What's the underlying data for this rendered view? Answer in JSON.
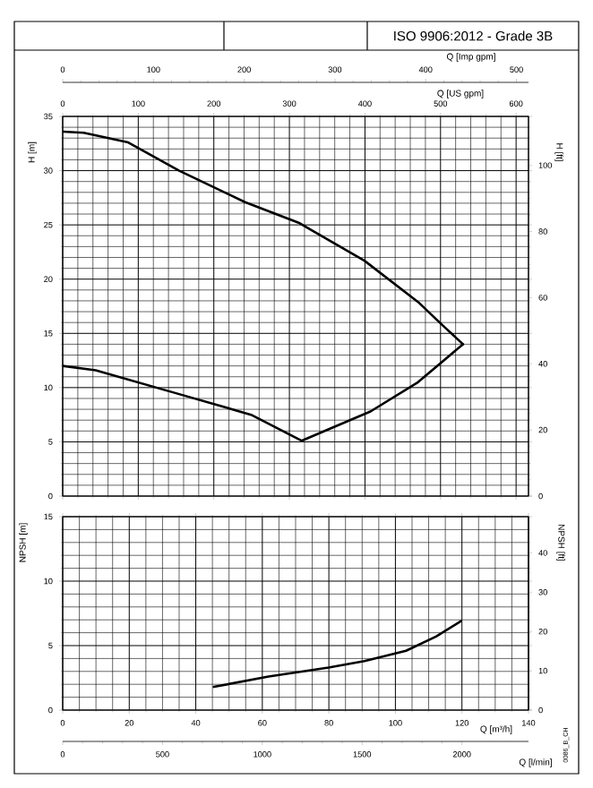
{
  "chart_data": [
    {
      "type": "line",
      "title": "ISO 9906:2012 - Grade 3B",
      "ylabel": "H [m]",
      "y2label": "H [ft]",
      "xlabel": "Q [US gpm]",
      "x2label": "Q [Imp gpm]",
      "xlim": [
        0,
        616.4
      ],
      "xticks": [
        0,
        100,
        200,
        300,
        400,
        500,
        600
      ],
      "ylim": [
        0,
        35
      ],
      "yticks": [
        0,
        5,
        10,
        15,
        20,
        25,
        30,
        35
      ],
      "y2lim": [
        0,
        114.8
      ],
      "y2ticks": [
        0,
        20,
        40,
        60,
        80,
        100
      ],
      "x2lim": [
        0,
        513.3
      ],
      "x2ticks": [
        0,
        100,
        200,
        300,
        400,
        500
      ],
      "grid": true,
      "series": [
        {
          "color": "#000000",
          "x": [
            0,
            27.7,
            86.7,
            154.1,
            241.3,
            312.2,
            399.3,
            470.2,
            501.9,
            529.7
          ],
          "values": [
            33.6,
            33.5,
            32.6,
            30.0,
            27.1,
            25.2,
            21.7,
            17.9,
            15.8,
            14.0
          ]
        },
        {
          "color": "#000000",
          "x": [
            0,
            43.6,
            154.1,
            249.2,
            316.1,
            407.3,
            470.2,
            529.7
          ],
          "values": [
            12.0,
            11.6,
            9.4,
            7.5,
            5.1,
            7.8,
            10.5,
            14.0
          ]
        }
      ]
    },
    {
      "type": "line",
      "xlabel": "Q [m³/h]",
      "x2label": "Q [l/min]",
      "ylabel": "NPSH [m]",
      "y2label": "NPSH [ft]",
      "annotations": [
        "0086_B_CH"
      ],
      "xlim": [
        0,
        140
      ],
      "xticks": [
        0,
        20,
        40,
        60,
        80,
        100,
        120,
        140
      ],
      "ylim": [
        0,
        15
      ],
      "yticks": [
        0,
        5,
        10,
        15
      ],
      "y2lim": [
        0,
        49.21
      ],
      "y2ticks": [
        0,
        10,
        20,
        30,
        40
      ],
      "x2lim": [
        0,
        2333.3
      ],
      "x2ticks": [
        0,
        500,
        1000,
        1500,
        2000
      ],
      "grid": true,
      "series": [
        {
          "color": "#000000",
          "x": [
            45.4,
            61.9,
            79.9,
            90.7,
            103.2,
            112.2,
            119.7
          ],
          "values": [
            1.8,
            2.6,
            3.3,
            3.8,
            4.6,
            5.7,
            6.9
          ]
        }
      ]
    }
  ]
}
